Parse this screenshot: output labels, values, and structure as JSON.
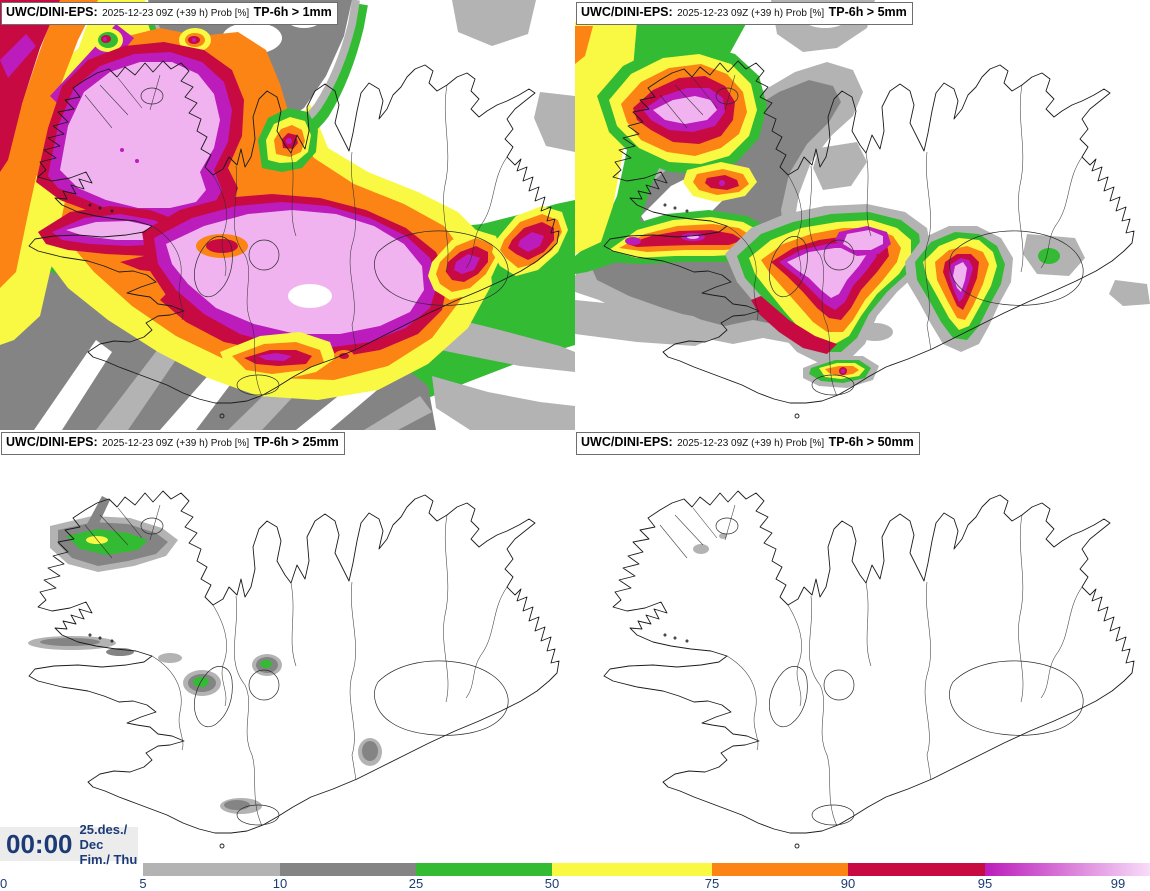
{
  "panels": [
    {
      "name": "UWC/DINI-EPS:",
      "meta": "2025-12-23 09Z (+39 h) Prob [%]",
      "threshold": "TP-6h > 1mm"
    },
    {
      "name": "UWC/DINI-EPS:",
      "meta": "2025-12-23 09Z (+39 h) Prob [%]",
      "threshold": "TP-6h > 5mm"
    },
    {
      "name": "UWC/DINI-EPS:",
      "meta": "2025-12-23 09Z (+39 h) Prob [%]",
      "threshold": "TP-6h > 25mm"
    },
    {
      "name": "UWC/DINI-EPS:",
      "meta": "2025-12-23 09Z (+39 h) Prob [%]",
      "threshold": "TP-6h > 50mm"
    }
  ],
  "clock": {
    "time": "00:00",
    "date": "25.des./ Dec",
    "weekday": "Fim./ Thu"
  },
  "legend": {
    "unit": "Prob [%]",
    "ticks": [
      "0",
      "5",
      "10",
      "25",
      "50",
      "75",
      "90",
      "95",
      "99"
    ],
    "segments": [
      {
        "from": "0",
        "to": "5",
        "color": "#ffffff"
      },
      {
        "from": "5",
        "to": "10",
        "color": "#b3b3b3"
      },
      {
        "from": "10",
        "to": "25",
        "color": "#848484"
      },
      {
        "from": "25",
        "to": "50",
        "color": "#33bb33"
      },
      {
        "from": "50",
        "to": "75",
        "color": "#f9f943"
      },
      {
        "from": "75",
        "to": "90",
        "color": "#fb8414"
      },
      {
        "from": "90",
        "to": "95",
        "color": "#c70a42"
      },
      {
        "from": "95",
        "to": "99",
        "color": "#bb1cbb",
        "gradient": true,
        "color_end": "#f8dcf8"
      }
    ]
  },
  "palette": {
    "gray_light": "#b3b3b3",
    "gray_dark": "#848484",
    "green": "#33bb33",
    "yellow": "#f9f943",
    "orange": "#fb8414",
    "crimson": "#c70a42",
    "magenta": "#bb1cbb",
    "palepink": "#f0b3f0",
    "navy": "#1c3b76"
  }
}
